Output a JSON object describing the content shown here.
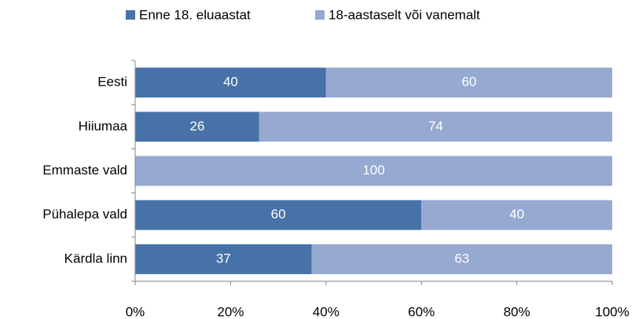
{
  "chart_data": {
    "type": "stacked_barh",
    "categories": [
      "Eesti",
      "Hiiumaa",
      "Emmaste vald",
      "Pühalepa vald",
      "Kärdla linn"
    ],
    "series": [
      {
        "name": "Enne 18. eluaastat",
        "color": "#4672a8",
        "values": [
          40,
          26,
          0,
          60,
          37
        ]
      },
      {
        "name": "18-aastaselt või vanemalt",
        "color": "#95a9d1",
        "values": [
          60,
          74,
          100,
          40,
          63
        ]
      }
    ],
    "xlim": [
      0,
      100
    ],
    "xticks": [
      {
        "value": 0,
        "label": "0%"
      },
      {
        "value": 20,
        "label": "20%"
      },
      {
        "value": 40,
        "label": "40%"
      },
      {
        "value": 60,
        "label": "60%"
      },
      {
        "value": 80,
        "label": "80%"
      },
      {
        "value": 100,
        "label": "100%"
      }
    ],
    "legend": "top"
  }
}
